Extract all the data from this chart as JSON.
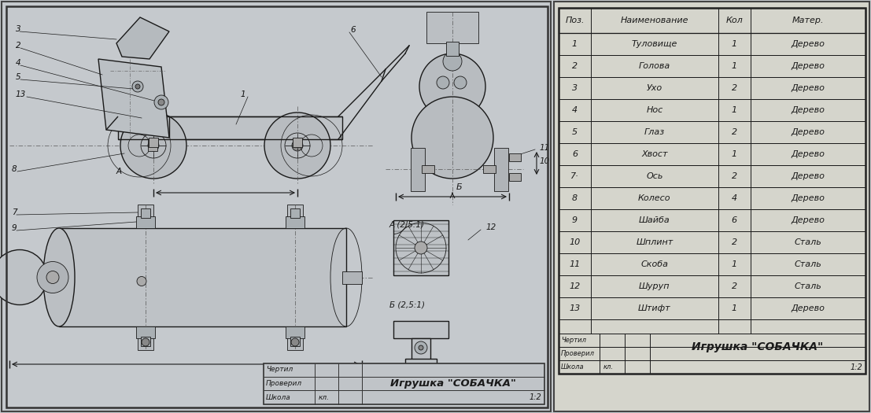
{
  "bg_color": "#c8ccd0",
  "draw_bg": "#c8ccd4",
  "table_bg": "#d8d8d0",
  "lc": "#1a1a1a",
  "title": "Игрушка \"СОБАЧКА\"",
  "scale": "1:2",
  "school_label": "Школа",
  "school_val": "кл.",
  "chertil_label": "Чертил",
  "proveril_label": "Проверил",
  "table_headers": [
    "Поз.",
    "Наименование",
    "Кол",
    "Матер."
  ],
  "table_rows": [
    [
      "1",
      "Туловище",
      "1",
      "Дерево"
    ],
    [
      "2",
      "Голова",
      "1",
      "Дерево"
    ],
    [
      "3",
      "Ухо",
      "2",
      "Дерево"
    ],
    [
      "4",
      "Нос",
      "1",
      "Дерево"
    ],
    [
      "5",
      "Глаз",
      "2",
      "Дерево"
    ],
    [
      "6",
      "Хвост",
      "1",
      "Дерево"
    ],
    [
      "7·",
      "Ось",
      "2",
      "Дерево"
    ],
    [
      "8",
      "Колесо",
      "4",
      "Дерево"
    ],
    [
      "9",
      "Шайба",
      "6",
      "Дерево"
    ],
    [
      "10",
      "Шплинт",
      "2",
      "Сталь"
    ],
    [
      "11",
      "Скоба",
      "1",
      "Сталь"
    ],
    [
      "12",
      "Шуруп",
      "2",
      "Сталь"
    ],
    [
      "13",
      "Штифт",
      "1",
      "Дерево"
    ]
  ],
  "A_scale": "А (2,5:1)",
  "B_scale": "Б (2,5:1)",
  "A_label": "А",
  "B_label": "Б"
}
